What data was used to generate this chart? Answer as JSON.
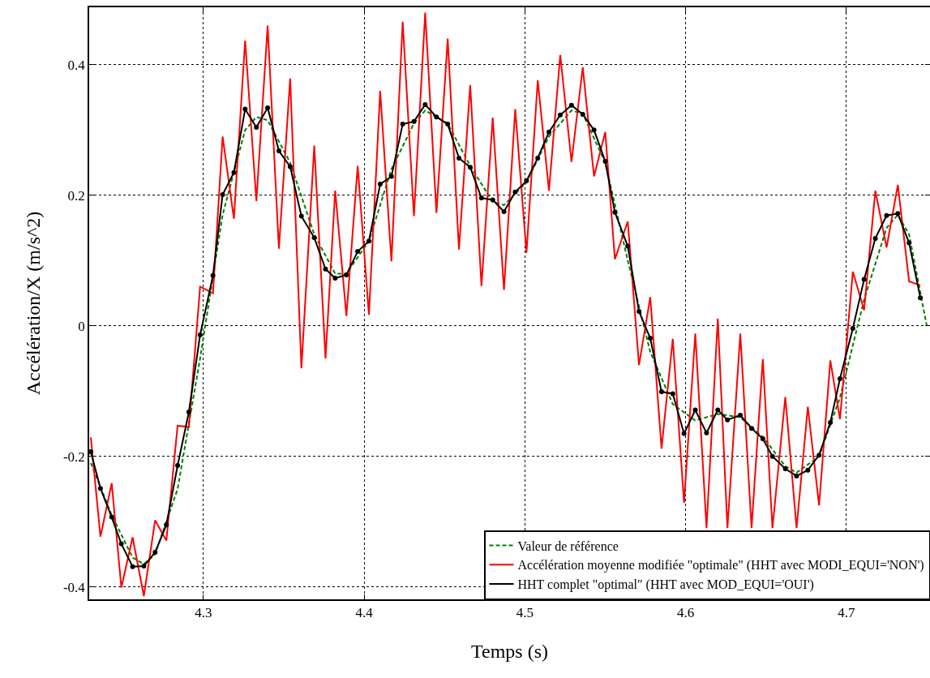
{
  "chart_data": {
    "type": "line",
    "xlabel": "Temps (s)",
    "ylabel": "Accélération/X (m/s^2)",
    "xlim": [
      4.229,
      4.752
    ],
    "xticks": [
      4.3,
      4.4,
      4.5,
      4.6,
      4.7
    ],
    "ylim": [
      -0.419,
      0.488
    ],
    "yticks": [
      -0.4,
      -0.2,
      0,
      0.2,
      0.4
    ],
    "grid": true,
    "legend": "bottom right",
    "series": [
      {
        "name": "Valeur de référence",
        "color": "#008000",
        "line_style": "dashed",
        "marker": "none",
        "x": [
          4.23,
          4.243,
          4.256,
          4.263,
          4.27,
          4.284,
          4.298,
          4.312,
          4.326,
          4.333,
          4.34,
          4.354,
          4.369,
          4.382,
          4.389,
          4.403,
          4.417,
          4.431,
          4.438,
          4.452,
          4.466,
          4.48,
          4.487,
          4.501,
          4.515,
          4.529,
          4.536,
          4.55,
          4.564,
          4.578,
          4.592,
          4.606,
          4.62,
          4.634,
          4.648,
          4.662,
          4.669,
          4.683,
          4.696,
          4.711,
          4.725,
          4.732,
          4.739,
          4.75
        ],
        "values": [
          -0.21,
          -0.29,
          -0.355,
          -0.365,
          -0.35,
          -0.25,
          -0.05,
          0.17,
          0.3,
          0.32,
          0.315,
          0.25,
          0.14,
          0.08,
          0.08,
          0.13,
          0.24,
          0.31,
          0.33,
          0.31,
          0.245,
          0.19,
          0.185,
          0.22,
          0.29,
          0.33,
          0.325,
          0.25,
          0.1,
          -0.04,
          -0.12,
          -0.145,
          -0.135,
          -0.14,
          -0.17,
          -0.215,
          -0.225,
          -0.2,
          -0.11,
          0.04,
          0.15,
          0.17,
          0.14,
          0.0
        ]
      },
      {
        "name": "Accélération moyenne modifiée \"optimale\" (HHT avec MODI_EQUI='NON')",
        "color": "#ff0000",
        "line_style": "solid",
        "marker": "none",
        "x": [
          4.23,
          4.236,
          4.243,
          4.249,
          4.256,
          4.263,
          4.27,
          4.277,
          4.284,
          4.291,
          4.298,
          4.306,
          4.312,
          4.319,
          4.326,
          4.333,
          4.34,
          4.347,
          4.354,
          4.361,
          4.369,
          4.376,
          4.382,
          4.389,
          4.396,
          4.403,
          4.41,
          4.417,
          4.424,
          4.431,
          4.438,
          4.445,
          4.452,
          4.459,
          4.466,
          4.473,
          4.48,
          4.487,
          4.494,
          4.501,
          4.508,
          4.515,
          4.522,
          4.529,
          4.536,
          4.543,
          4.55,
          4.556,
          4.564,
          4.571,
          4.578,
          4.585,
          4.592,
          4.599,
          4.606,
          4.613,
          4.62,
          4.626,
          4.634,
          4.641,
          4.648,
          4.654,
          4.662,
          4.669,
          4.676,
          4.683,
          4.69,
          4.696,
          4.704,
          4.711,
          4.718,
          4.725,
          4.732,
          4.739,
          4.746
        ],
        "values": [
          -0.171,
          -0.323,
          -0.241,
          -0.401,
          -0.324,
          -0.414,
          -0.298,
          -0.329,
          -0.153,
          -0.155,
          0.06,
          0.05,
          0.29,
          0.164,
          0.437,
          0.191,
          0.46,
          0.118,
          0.379,
          -0.065,
          0.276,
          -0.05,
          0.207,
          0.015,
          0.245,
          0.017,
          0.36,
          0.099,
          0.466,
          0.168,
          0.48,
          0.173,
          0.44,
          0.117,
          0.369,
          0.061,
          0.319,
          0.055,
          0.332,
          0.112,
          0.376,
          0.207,
          0.415,
          0.251,
          0.396,
          0.229,
          0.297,
          0.102,
          0.16,
          -0.06,
          0.044,
          -0.188,
          -0.02,
          -0.271,
          -0.012,
          -0.31,
          0.011,
          -0.31,
          -0.012,
          -0.31,
          -0.051,
          -0.31,
          -0.109,
          -0.31,
          -0.124,
          -0.275,
          -0.053,
          -0.143,
          0.083,
          0.024,
          0.207,
          0.12,
          0.216,
          0.068,
          0.062
        ]
      },
      {
        "name": "HHT complet \"optimal\" (HHT avec MOD_EQUI='OUI')",
        "color": "#000000",
        "line_style": "solid",
        "marker": "circle",
        "x": [
          4.23,
          4.236,
          4.243,
          4.249,
          4.256,
          4.263,
          4.27,
          4.277,
          4.284,
          4.291,
          4.298,
          4.306,
          4.312,
          4.319,
          4.326,
          4.333,
          4.34,
          4.347,
          4.354,
          4.361,
          4.369,
          4.376,
          4.382,
          4.389,
          4.396,
          4.403,
          4.41,
          4.417,
          4.424,
          4.431,
          4.438,
          4.445,
          4.452,
          4.459,
          4.466,
          4.473,
          4.48,
          4.487,
          4.494,
          4.501,
          4.508,
          4.515,
          4.522,
          4.529,
          4.536,
          4.543,
          4.55,
          4.556,
          4.564,
          4.571,
          4.578,
          4.585,
          4.592,
          4.599,
          4.606,
          4.613,
          4.62,
          4.626,
          4.634,
          4.641,
          4.648,
          4.654,
          4.662,
          4.669,
          4.676,
          4.683,
          4.69,
          4.696,
          4.704,
          4.711,
          4.718,
          4.725,
          4.732,
          4.739,
          4.746
        ],
        "values": [
          -0.193,
          -0.249,
          -0.293,
          -0.334,
          -0.369,
          -0.368,
          -0.347,
          -0.305,
          -0.214,
          -0.132,
          -0.014,
          0.077,
          0.201,
          0.235,
          0.332,
          0.304,
          0.334,
          0.268,
          0.244,
          0.168,
          0.135,
          0.087,
          0.073,
          0.078,
          0.114,
          0.13,
          0.217,
          0.229,
          0.309,
          0.313,
          0.339,
          0.32,
          0.309,
          0.257,
          0.243,
          0.196,
          0.193,
          0.175,
          0.205,
          0.222,
          0.257,
          0.297,
          0.323,
          0.338,
          0.324,
          0.3,
          0.252,
          0.174,
          0.122,
          0.022,
          -0.019,
          -0.101,
          -0.104,
          -0.165,
          -0.129,
          -0.164,
          -0.129,
          -0.144,
          -0.137,
          -0.157,
          -0.173,
          -0.2,
          -0.219,
          -0.23,
          -0.221,
          -0.198,
          -0.148,
          -0.081,
          -0.004,
          0.071,
          0.134,
          0.169,
          0.172,
          0.127,
          0.043
        ]
      }
    ]
  }
}
